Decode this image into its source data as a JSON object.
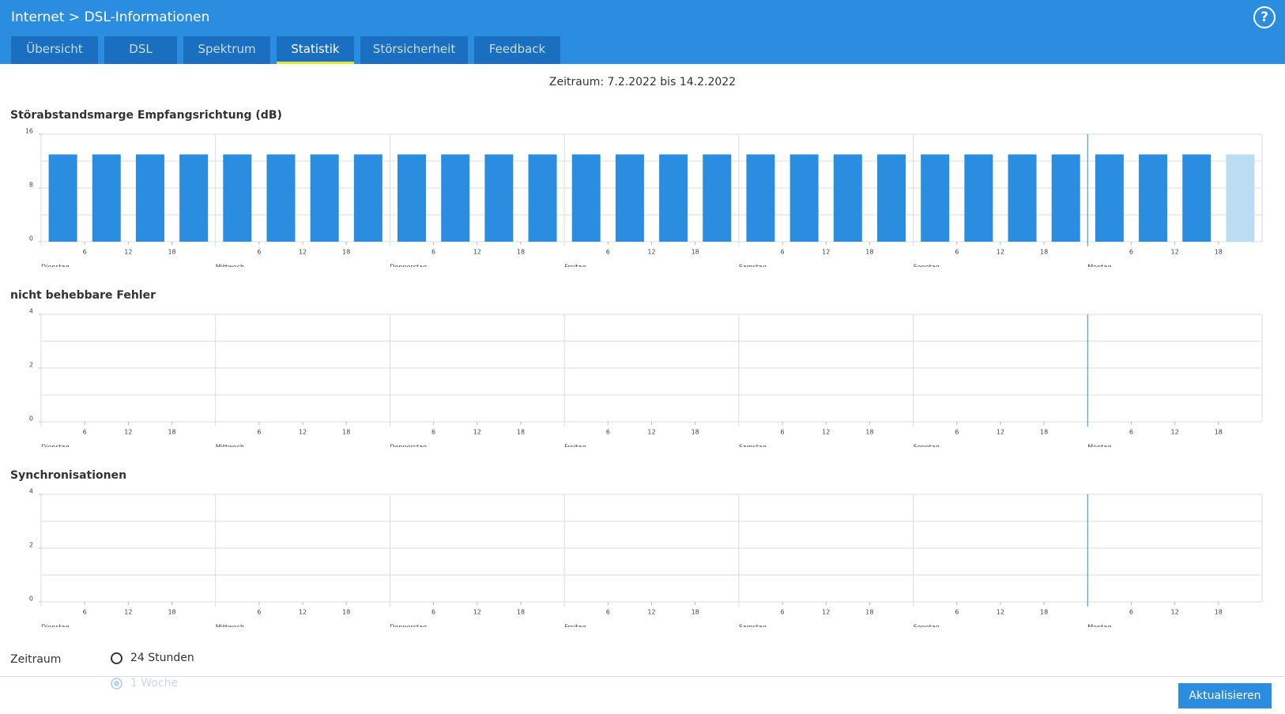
{
  "header": {
    "breadcrumb": [
      "Internet",
      "DSL-Informationen"
    ],
    "help": "?"
  },
  "tabs": [
    "Übersicht",
    "DSL",
    "Spektrum",
    "Statistik",
    "Störsicherheit",
    "Feedback"
  ],
  "active_tab": 3,
  "period": "Zeitraum: 7.2.2022 bis 14.2.2022",
  "chart_data": [
    {
      "type": "bar",
      "title": "Störabstandsmarge Empfangsrichtung (dB)",
      "ylim": [
        0,
        16
      ],
      "yticks": [
        0,
        8,
        16
      ],
      "grid_lines": [
        4,
        8,
        12,
        16
      ],
      "days": [
        "Dienstag",
        "Mittwoch",
        "Donnerstag",
        "Freitag",
        "Samstag",
        "Sonntag",
        "Montag"
      ],
      "hour_ticks": [
        6,
        12,
        18
      ],
      "values": [
        13,
        13,
        13,
        13,
        13,
        13,
        13,
        13,
        13,
        13,
        13,
        13,
        13,
        13,
        13,
        13,
        13,
        13,
        13,
        13,
        13,
        13,
        13,
        13,
        13,
        13,
        13,
        13
      ],
      "color": "#2a8ddf",
      "last_color": "#bcdcf3"
    },
    {
      "type": "bar",
      "title": "nicht behebbare Fehler",
      "ylim": [
        0,
        4
      ],
      "yticks": [
        0,
        2,
        4
      ],
      "grid_lines": [
        1,
        2,
        3,
        4
      ],
      "days": [
        "Dienstag",
        "Mittwoch",
        "Donnerstag",
        "Freitag",
        "Samstag",
        "Sonntag",
        "Montag"
      ],
      "hour_ticks": [
        6,
        12,
        18
      ],
      "values": [
        0,
        0,
        0,
        0,
        0,
        0,
        0,
        0,
        0,
        0,
        0,
        0,
        0,
        0,
        0,
        0,
        0,
        0,
        0,
        0,
        0,
        0,
        0,
        0,
        0,
        0,
        0,
        0
      ],
      "color": "#2a8ddf",
      "last_color": "#bcdcf3"
    },
    {
      "type": "bar",
      "title": "Synchronisationen",
      "ylim": [
        0,
        4
      ],
      "yticks": [
        0,
        2,
        4
      ],
      "grid_lines": [
        1,
        2,
        3,
        4
      ],
      "days": [
        "Dienstag",
        "Mittwoch",
        "Donnerstag",
        "Freitag",
        "Samstag",
        "Sonntag",
        "Montag"
      ],
      "hour_ticks": [
        6,
        12,
        18
      ],
      "values": [
        0,
        0,
        0,
        0,
        0,
        0,
        0,
        0,
        0,
        0,
        0,
        0,
        0,
        0,
        0,
        0,
        0,
        0,
        0,
        0,
        0,
        0,
        0,
        0,
        0,
        0,
        0,
        0
      ],
      "color": "#2a8ddf",
      "last_color": "#bcdcf3"
    }
  ],
  "form": {
    "label": "Zeitraum",
    "options": [
      "24 Stunden",
      "1 Woche"
    ],
    "selected": 1
  },
  "button": "Aktualisieren"
}
